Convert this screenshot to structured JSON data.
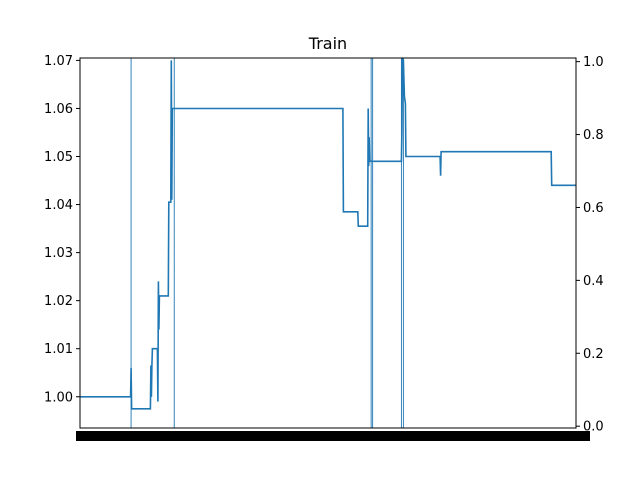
{
  "chart_data": {
    "type": "line",
    "title": "Train",
    "xlabel": "",
    "ylabel": "",
    "grid": false,
    "xlim": [
      0,
      1000
    ],
    "ylim": [
      0.9935,
      1.0705
    ],
    "yticks": [
      1.0,
      1.01,
      1.02,
      1.03,
      1.04,
      1.05,
      1.06,
      1.07
    ],
    "ytick_labels": [
      "1.00",
      "1.01",
      "1.02",
      "1.03",
      "1.04",
      "1.05",
      "1.06",
      "1.07"
    ],
    "y2lim": [
      -0.005,
      1.01
    ],
    "y2ticks": [
      0.0,
      0.2,
      0.4,
      0.6,
      0.8,
      1.0
    ],
    "y2tick_labels": [
      "0.0",
      "0.2",
      "0.4",
      "0.6",
      "0.8",
      "1.0"
    ],
    "x_ticks_note": "dense overlapping tick labels (unreadable)",
    "series": [
      {
        "color": "#1f77b4",
        "points": [
          [
            0,
            1.0
          ],
          [
            102,
            1.0
          ],
          [
            103,
            1.006
          ],
          [
            104,
            0.9975
          ],
          [
            142,
            0.9975
          ],
          [
            143,
            1.0065
          ],
          [
            144,
            1.0
          ],
          [
            145,
            1.0065
          ],
          [
            146,
            1.01
          ],
          [
            156,
            1.01
          ],
          [
            157,
            0.999
          ],
          [
            158,
            1.024
          ],
          [
            159,
            1.014
          ],
          [
            160,
            1.021
          ],
          [
            178,
            1.021
          ],
          [
            179,
            1.0405
          ],
          [
            183,
            1.0405
          ],
          [
            184,
            1.07
          ],
          [
            185,
            1.041
          ],
          [
            186,
            1.06
          ],
          [
            530,
            1.06
          ],
          [
            531,
            1.0385
          ],
          [
            560,
            1.0385
          ],
          [
            561,
            1.0355
          ],
          [
            580,
            1.0355
          ],
          [
            581,
            1.06
          ],
          [
            582,
            1.048
          ],
          [
            583,
            1.054
          ],
          [
            584,
            1.049
          ],
          [
            648,
            1.049
          ],
          [
            649,
            1.055
          ],
          [
            650,
            1.0705
          ],
          [
            652,
            1.07
          ],
          [
            654,
            1.0625
          ],
          [
            656,
            1.061
          ],
          [
            657,
            1.05
          ],
          [
            726,
            1.05
          ],
          [
            727,
            1.046
          ],
          [
            728,
            1.051
          ],
          [
            950,
            1.051
          ],
          [
            951,
            1.044
          ],
          [
            1000,
            1.044
          ]
        ]
      }
    ],
    "vertical_lines_x": [
      103,
      190,
      587,
      590,
      648,
      652
    ]
  }
}
